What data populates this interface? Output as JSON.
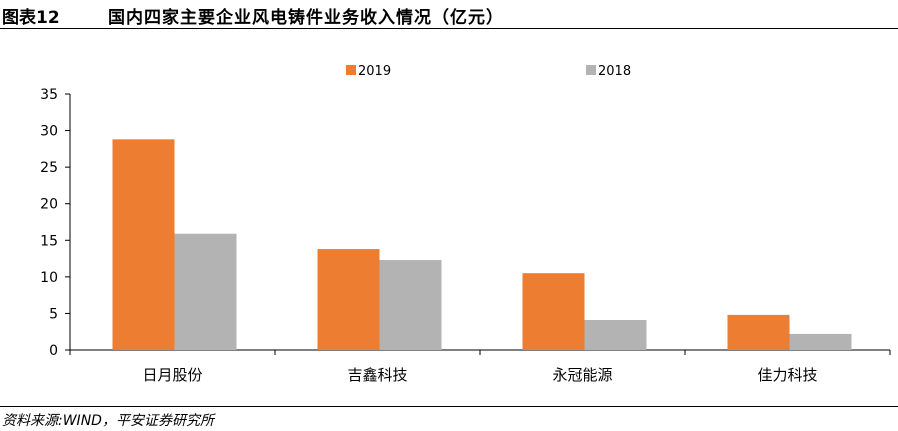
{
  "header": {
    "figure_label": "图表12",
    "title": "国内四家主要企业风电铸件业务收入情况（亿元）"
  },
  "source": "资料来源:WIND，平安证券研究所",
  "chart_data": {
    "type": "bar",
    "categories": [
      "日月股份",
      "吉鑫科技",
      "永冠能源",
      "佳力科技"
    ],
    "series": [
      {
        "name": "2019",
        "values": [
          28.8,
          13.8,
          10.5,
          4.8
        ],
        "color": "#ED7D31"
      },
      {
        "name": "2018",
        "values": [
          15.9,
          12.3,
          4.1,
          2.2
        ],
        "color": "#B3B3B3"
      }
    ],
    "ylim": [
      0,
      35
    ],
    "yticks": [
      "0",
      "5",
      "10",
      "15",
      "20",
      "25",
      "30",
      "35"
    ],
    "xlabel": "",
    "ylabel": "",
    "grid": false,
    "legend_position": "top-center"
  }
}
